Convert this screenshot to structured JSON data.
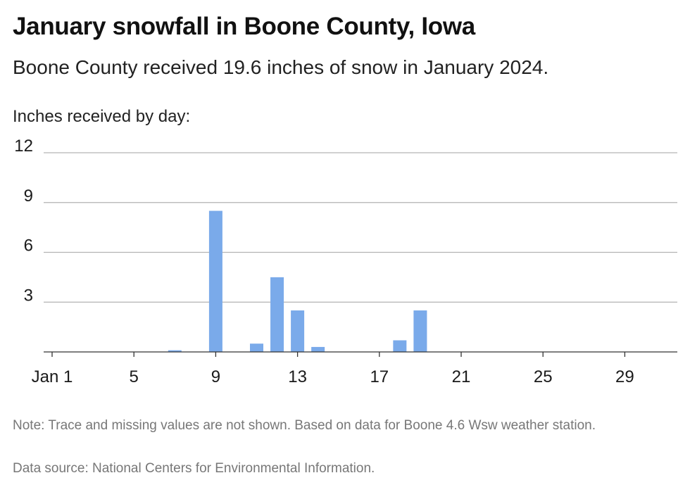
{
  "header": {
    "title": "January snowfall in Boone County, Iowa",
    "subtitle": "Boone County received 19.6 inches of snow in January 2024."
  },
  "footer": {
    "note": "Note: Trace and missing values are not shown. Based on data for Boone 4.6 Wsw weather station.",
    "source": "Data source: National Centers for Environmental Information."
  },
  "colors": {
    "bar": "#7aaaea",
    "grid": "#b3b3b3",
    "axis": "#333333",
    "text": "#1a1a1a"
  },
  "chart_data": {
    "type": "bar",
    "title": "January snowfall in Boone County, Iowa",
    "ylabel": "Inches received by day:",
    "xlabel": "",
    "ylim": [
      0,
      12
    ],
    "y_ticks": [
      3,
      6,
      9,
      12
    ],
    "x_range": [
      1,
      31
    ],
    "x_ticks": [
      {
        "day": 1,
        "label": "Jan 1"
      },
      {
        "day": 5,
        "label": "5"
      },
      {
        "day": 9,
        "label": "9"
      },
      {
        "day": 13,
        "label": "13"
      },
      {
        "day": 17,
        "label": "17"
      },
      {
        "day": 21,
        "label": "21"
      },
      {
        "day": 25,
        "label": "25"
      },
      {
        "day": 29,
        "label": "29"
      }
    ],
    "grid": true,
    "legend": "none",
    "series": [
      {
        "points": [
          {
            "day": 7,
            "value": 0.1
          },
          {
            "day": 9,
            "value": 8.5
          },
          {
            "day": 11,
            "value": 0.5
          },
          {
            "day": 12,
            "value": 4.5
          },
          {
            "day": 13,
            "value": 2.5
          },
          {
            "day": 14,
            "value": 0.3
          },
          {
            "day": 18,
            "value": 0.7
          },
          {
            "day": 19,
            "value": 2.5
          }
        ]
      }
    ]
  }
}
